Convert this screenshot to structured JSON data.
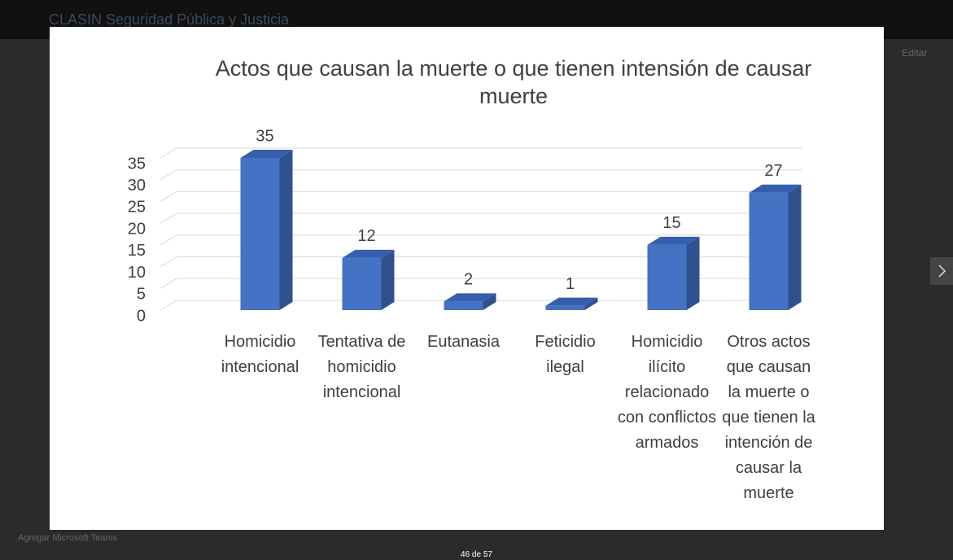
{
  "ui": {
    "site_title": "CLASIN Seguridad Pública y Justicia",
    "edit": "Editar",
    "teams": "Agregar Microsoft Teams",
    "counter": "46 de 57"
  },
  "chart_data": {
    "type": "bar3d",
    "title": "Actos que causan la muerte o que tienen intensión de causar muerte",
    "categories": [
      "Homicidio intencional",
      "Tentativa de homicidio intencional",
      "Eutanasia",
      "Feticidio ilegal",
      "Homicidio ilícito relacionado con conflictos armados",
      "Otros actos que causan la muerte o que tienen la intención de causar la muerte"
    ],
    "values": [
      35,
      12,
      2,
      1,
      15,
      27
    ],
    "color": "#4472c4",
    "ylim": [
      0,
      35
    ],
    "yticks": [
      0,
      5,
      10,
      15,
      20,
      25,
      30,
      35
    ],
    "grid": true
  }
}
